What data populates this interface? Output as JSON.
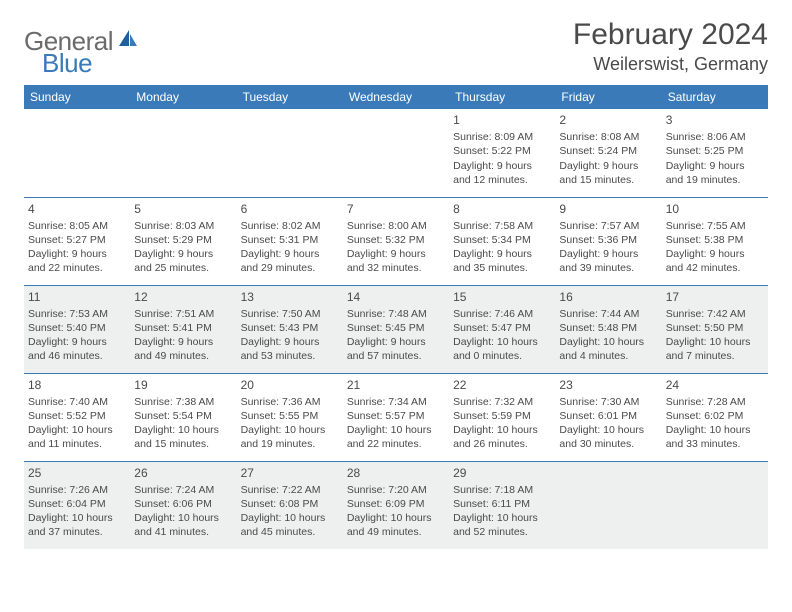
{
  "brand": {
    "part1": "General",
    "part2": "Blue"
  },
  "title": "February 2024",
  "location": "Weilerswist, Germany",
  "colors": {
    "header_bg": "#3a7ab8",
    "header_text": "#ffffff",
    "row_border": "#3a7ab8",
    "shaded_bg": "#eef0f0",
    "text": "#4a4a4a",
    "logo_gray": "#6b6b6b",
    "logo_blue": "#3a7ab8"
  },
  "weekdays": [
    "Sunday",
    "Monday",
    "Tuesday",
    "Wednesday",
    "Thursday",
    "Friday",
    "Saturday"
  ],
  "weeks": [
    {
      "shaded": false,
      "days": [
        null,
        null,
        null,
        null,
        {
          "n": "1",
          "sr": "Sunrise: 8:09 AM",
          "ss": "Sunset: 5:22 PM",
          "d1": "Daylight: 9 hours",
          "d2": "and 12 minutes."
        },
        {
          "n": "2",
          "sr": "Sunrise: 8:08 AM",
          "ss": "Sunset: 5:24 PM",
          "d1": "Daylight: 9 hours",
          "d2": "and 15 minutes."
        },
        {
          "n": "3",
          "sr": "Sunrise: 8:06 AM",
          "ss": "Sunset: 5:25 PM",
          "d1": "Daylight: 9 hours",
          "d2": "and 19 minutes."
        }
      ]
    },
    {
      "shaded": false,
      "days": [
        {
          "n": "4",
          "sr": "Sunrise: 8:05 AM",
          "ss": "Sunset: 5:27 PM",
          "d1": "Daylight: 9 hours",
          "d2": "and 22 minutes."
        },
        {
          "n": "5",
          "sr": "Sunrise: 8:03 AM",
          "ss": "Sunset: 5:29 PM",
          "d1": "Daylight: 9 hours",
          "d2": "and 25 minutes."
        },
        {
          "n": "6",
          "sr": "Sunrise: 8:02 AM",
          "ss": "Sunset: 5:31 PM",
          "d1": "Daylight: 9 hours",
          "d2": "and 29 minutes."
        },
        {
          "n": "7",
          "sr": "Sunrise: 8:00 AM",
          "ss": "Sunset: 5:32 PM",
          "d1": "Daylight: 9 hours",
          "d2": "and 32 minutes."
        },
        {
          "n": "8",
          "sr": "Sunrise: 7:58 AM",
          "ss": "Sunset: 5:34 PM",
          "d1": "Daylight: 9 hours",
          "d2": "and 35 minutes."
        },
        {
          "n": "9",
          "sr": "Sunrise: 7:57 AM",
          "ss": "Sunset: 5:36 PM",
          "d1": "Daylight: 9 hours",
          "d2": "and 39 minutes."
        },
        {
          "n": "10",
          "sr": "Sunrise: 7:55 AM",
          "ss": "Sunset: 5:38 PM",
          "d1": "Daylight: 9 hours",
          "d2": "and 42 minutes."
        }
      ]
    },
    {
      "shaded": true,
      "days": [
        {
          "n": "11",
          "sr": "Sunrise: 7:53 AM",
          "ss": "Sunset: 5:40 PM",
          "d1": "Daylight: 9 hours",
          "d2": "and 46 minutes."
        },
        {
          "n": "12",
          "sr": "Sunrise: 7:51 AM",
          "ss": "Sunset: 5:41 PM",
          "d1": "Daylight: 9 hours",
          "d2": "and 49 minutes."
        },
        {
          "n": "13",
          "sr": "Sunrise: 7:50 AM",
          "ss": "Sunset: 5:43 PM",
          "d1": "Daylight: 9 hours",
          "d2": "and 53 minutes."
        },
        {
          "n": "14",
          "sr": "Sunrise: 7:48 AM",
          "ss": "Sunset: 5:45 PM",
          "d1": "Daylight: 9 hours",
          "d2": "and 57 minutes."
        },
        {
          "n": "15",
          "sr": "Sunrise: 7:46 AM",
          "ss": "Sunset: 5:47 PM",
          "d1": "Daylight: 10 hours",
          "d2": "and 0 minutes."
        },
        {
          "n": "16",
          "sr": "Sunrise: 7:44 AM",
          "ss": "Sunset: 5:48 PM",
          "d1": "Daylight: 10 hours",
          "d2": "and 4 minutes."
        },
        {
          "n": "17",
          "sr": "Sunrise: 7:42 AM",
          "ss": "Sunset: 5:50 PM",
          "d1": "Daylight: 10 hours",
          "d2": "and 7 minutes."
        }
      ]
    },
    {
      "shaded": false,
      "days": [
        {
          "n": "18",
          "sr": "Sunrise: 7:40 AM",
          "ss": "Sunset: 5:52 PM",
          "d1": "Daylight: 10 hours",
          "d2": "and 11 minutes."
        },
        {
          "n": "19",
          "sr": "Sunrise: 7:38 AM",
          "ss": "Sunset: 5:54 PM",
          "d1": "Daylight: 10 hours",
          "d2": "and 15 minutes."
        },
        {
          "n": "20",
          "sr": "Sunrise: 7:36 AM",
          "ss": "Sunset: 5:55 PM",
          "d1": "Daylight: 10 hours",
          "d2": "and 19 minutes."
        },
        {
          "n": "21",
          "sr": "Sunrise: 7:34 AM",
          "ss": "Sunset: 5:57 PM",
          "d1": "Daylight: 10 hours",
          "d2": "and 22 minutes."
        },
        {
          "n": "22",
          "sr": "Sunrise: 7:32 AM",
          "ss": "Sunset: 5:59 PM",
          "d1": "Daylight: 10 hours",
          "d2": "and 26 minutes."
        },
        {
          "n": "23",
          "sr": "Sunrise: 7:30 AM",
          "ss": "Sunset: 6:01 PM",
          "d1": "Daylight: 10 hours",
          "d2": "and 30 minutes."
        },
        {
          "n": "24",
          "sr": "Sunrise: 7:28 AM",
          "ss": "Sunset: 6:02 PM",
          "d1": "Daylight: 10 hours",
          "d2": "and 33 minutes."
        }
      ]
    },
    {
      "shaded": true,
      "days": [
        {
          "n": "25",
          "sr": "Sunrise: 7:26 AM",
          "ss": "Sunset: 6:04 PM",
          "d1": "Daylight: 10 hours",
          "d2": "and 37 minutes."
        },
        {
          "n": "26",
          "sr": "Sunrise: 7:24 AM",
          "ss": "Sunset: 6:06 PM",
          "d1": "Daylight: 10 hours",
          "d2": "and 41 minutes."
        },
        {
          "n": "27",
          "sr": "Sunrise: 7:22 AM",
          "ss": "Sunset: 6:08 PM",
          "d1": "Daylight: 10 hours",
          "d2": "and 45 minutes."
        },
        {
          "n": "28",
          "sr": "Sunrise: 7:20 AM",
          "ss": "Sunset: 6:09 PM",
          "d1": "Daylight: 10 hours",
          "d2": "and 49 minutes."
        },
        {
          "n": "29",
          "sr": "Sunrise: 7:18 AM",
          "ss": "Sunset: 6:11 PM",
          "d1": "Daylight: 10 hours",
          "d2": "and 52 minutes."
        },
        null,
        null
      ]
    }
  ]
}
